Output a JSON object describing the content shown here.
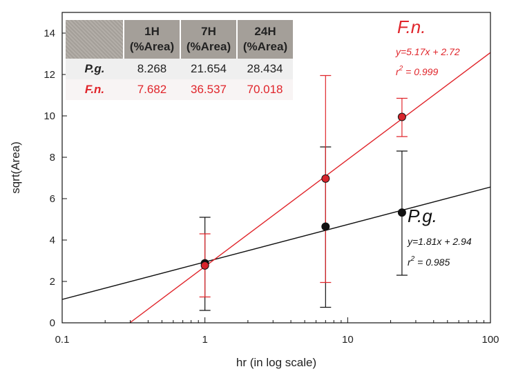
{
  "chart_data": {
    "type": "scatter",
    "xlabel": "hr (in log scale)",
    "ylabel": "sqrt(Area)",
    "x_scale": "log",
    "xlim": [
      0.1,
      100
    ],
    "ylim": [
      0,
      15
    ],
    "x_ticks": [
      0.1,
      1,
      10,
      100
    ],
    "x_tick_labels": [
      "0.1",
      "1",
      "10",
      "100"
    ],
    "y_ticks": [
      0,
      2,
      4,
      6,
      8,
      10,
      12,
      14
    ],
    "y_tick_labels": [
      "0",
      "2",
      "4",
      "6",
      "8",
      "10",
      "12",
      "14"
    ],
    "grid": false,
    "series": [
      {
        "name": "P.g.",
        "color": "#111111",
        "marker_fill": "#111111",
        "x": [
          1,
          7,
          24
        ],
        "y": [
          2.88,
          4.65,
          5.33
        ],
        "err_low": [
          0.6,
          0.75,
          2.3
        ],
        "err_high": [
          5.1,
          8.5,
          8.3
        ],
        "fit": {
          "slope": 1.81,
          "intercept": 2.94
        },
        "equation": "y=1.81x + 2.94",
        "r2_prefix": "r",
        "r2_exp": "2",
        "r2_suffix": " = 0.985"
      },
      {
        "name": "F.n.",
        "color": "#e0242a",
        "marker_fill": "#d8252c",
        "x": [
          1,
          7,
          24
        ],
        "y": [
          2.77,
          6.97,
          9.95
        ],
        "err_low": [
          1.25,
          1.95,
          9.0
        ],
        "err_high": [
          4.3,
          11.95,
          10.85
        ],
        "fit": {
          "slope": 5.17,
          "intercept": 2.72
        },
        "equation": "y=5.17x + 2.72",
        "r2_prefix": "r",
        "r2_exp": "2",
        "r2_suffix": " = 0.999"
      }
    ],
    "inset_table": {
      "header_line2": "(%Area)",
      "columns": [
        "1H",
        "7H",
        "24H"
      ],
      "rows": [
        {
          "label": "P.g.",
          "values": [
            "8.268",
            "21.654",
            "28.434"
          ]
        },
        {
          "label": "F.n.",
          "values": [
            "7.682",
            "36.537",
            "70.018"
          ]
        }
      ]
    }
  }
}
